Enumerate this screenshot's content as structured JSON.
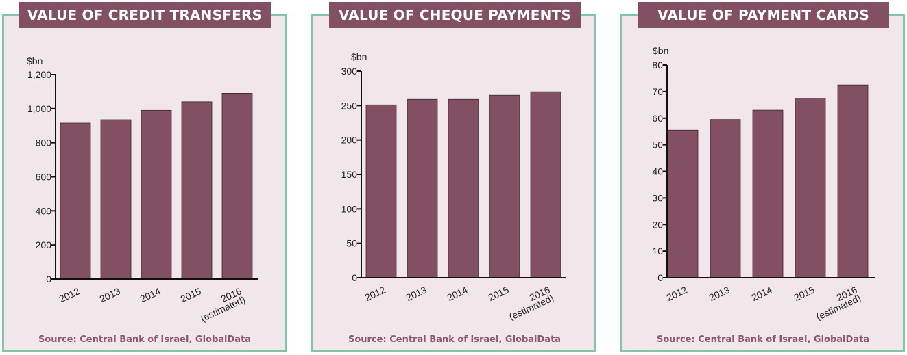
{
  "colors": {
    "bar": "#825062",
    "panel_bg": "#f1e6ea",
    "panel_border": "#7fc5a6",
    "title_bg": "#825062",
    "source_text": "#8a5a6c"
  },
  "panels": [
    {
      "title": "VALUE OF CREDIT TRANSFERS",
      "source": "Source: Central Bank of Israel, GlobalData"
    },
    {
      "title": "VALUE OF CHEQUE PAYMENTS",
      "source": "Source: Central Bank of Israel, GlobalData"
    },
    {
      "title": "VALUE OF PAYMENT CARDS",
      "source": "Source: Central Bank of Israel, GlobalData"
    }
  ],
  "chart_data": [
    {
      "type": "bar",
      "title": "VALUE OF CREDIT TRANSFERS",
      "ylabel": "$bn",
      "categories": [
        "2012",
        "2013",
        "2014",
        "2015",
        "2016 (estimated)"
      ],
      "values": [
        915,
        935,
        990,
        1040,
        1090
      ],
      "ylim": [
        0,
        1200
      ],
      "yticks": [
        0,
        200,
        400,
        600,
        800,
        1000,
        1200
      ],
      "ytick_labels": [
        "0",
        "200",
        "400",
        "600",
        "800",
        "1,000",
        "1,200"
      ],
      "grid": false,
      "legend": "none"
    },
    {
      "type": "bar",
      "title": "VALUE OF CHEQUE PAYMENTS",
      "ylabel": "$bn",
      "categories": [
        "2012",
        "2013",
        "2014",
        "2015",
        "2016 (estimated)"
      ],
      "values": [
        251,
        259,
        259,
        265,
        270
      ],
      "ylim": [
        0,
        300
      ],
      "yticks": [
        0,
        50,
        100,
        150,
        200,
        250,
        300
      ],
      "ytick_labels": [
        "0",
        "50",
        "100",
        "150",
        "200",
        "250",
        "300"
      ],
      "grid": false,
      "legend": "none"
    },
    {
      "type": "bar",
      "title": "VALUE OF PAYMENT CARDS",
      "ylabel": "$bn",
      "categories": [
        "2012",
        "2013",
        "2014",
        "2015",
        "2016 (estimated)"
      ],
      "values": [
        55.5,
        59.5,
        63,
        67.5,
        72.5
      ],
      "ylim": [
        0,
        80
      ],
      "yticks": [
        0,
        10,
        20,
        30,
        40,
        50,
        60,
        70,
        80
      ],
      "ytick_labels": [
        "0",
        "10",
        "20",
        "30",
        "40",
        "50",
        "60",
        "70",
        "80"
      ],
      "grid": false,
      "legend": "none"
    }
  ]
}
